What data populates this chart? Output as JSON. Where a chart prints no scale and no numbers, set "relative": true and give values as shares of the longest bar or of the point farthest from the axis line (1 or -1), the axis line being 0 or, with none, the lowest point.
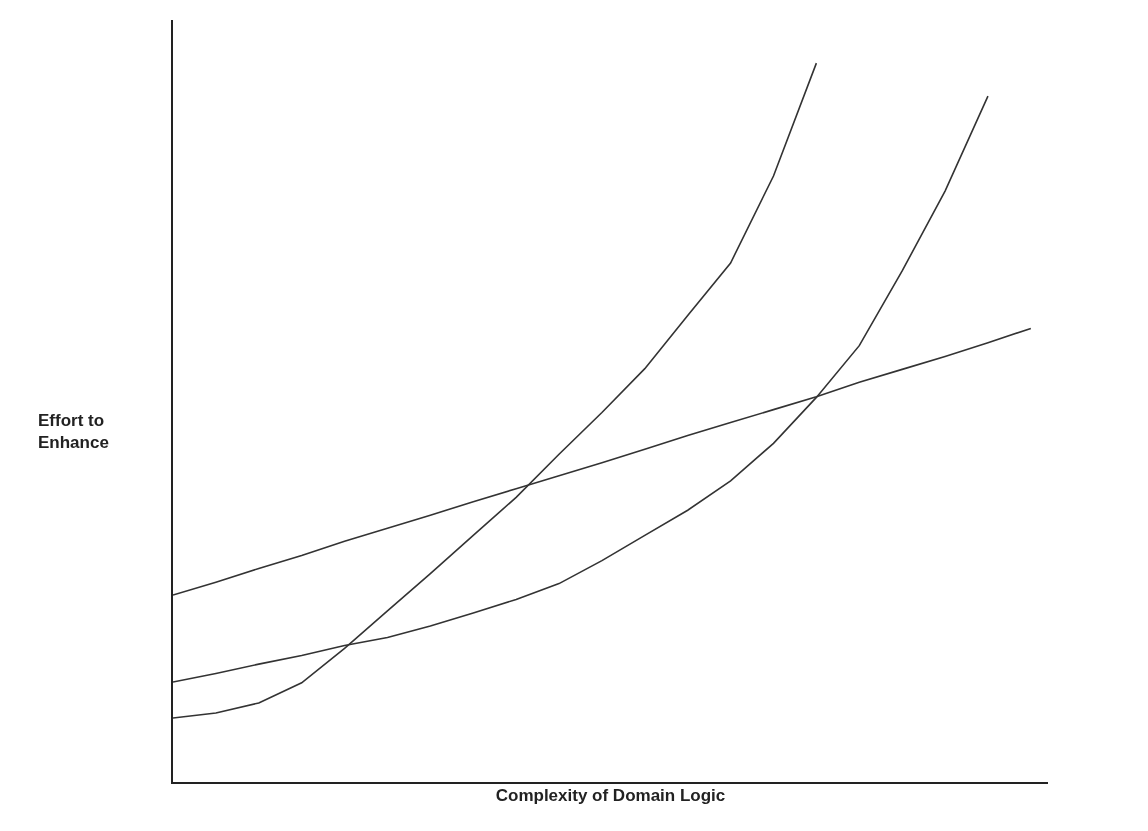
{
  "chart_data": {
    "type": "line",
    "relative": true,
    "xlabel": "Complexity of Domain Logic",
    "ylabel": "Effort to Enhance",
    "categories": [
      null,
      null,
      null,
      null,
      null,
      null,
      null,
      null,
      null,
      null,
      null,
      null,
      null,
      null,
      null,
      null,
      null,
      null,
      null,
      null,
      null
    ],
    "series": [
      {
        "color": "#333333",
        "values": [
          0.089,
          0.096,
          0.11,
          0.138,
          0.186,
          0.238,
          0.29,
          0.343,
          0.396,
          0.456,
          0.514,
          0.575,
          0.649,
          0.722,
          0.843,
          1,
          null,
          null,
          null,
          null,
          null
        ]
      },
      {
        "color": "#333333",
        "values": [
          0.139,
          0.151,
          0.164,
          0.176,
          0.19,
          0.201,
          0.217,
          0.235,
          0.254,
          0.276,
          0.308,
          0.343,
          0.378,
          0.419,
          0.471,
          0.535,
          0.607,
          0.711,
          0.822,
          0.954,
          null
        ]
      },
      {
        "color": "#333333",
        "values": [
          0.26,
          0.278,
          0.297,
          0.315,
          0.335,
          0.353,
          0.371,
          0.39,
          0.408,
          0.426,
          0.444,
          0.463,
          0.482,
          0.5,
          0.518,
          0.536,
          0.556,
          0.574,
          0.592,
          0.611,
          0.631
        ]
      }
    ],
    "grid": false,
    "marker": "none",
    "line_style": "solid"
  }
}
